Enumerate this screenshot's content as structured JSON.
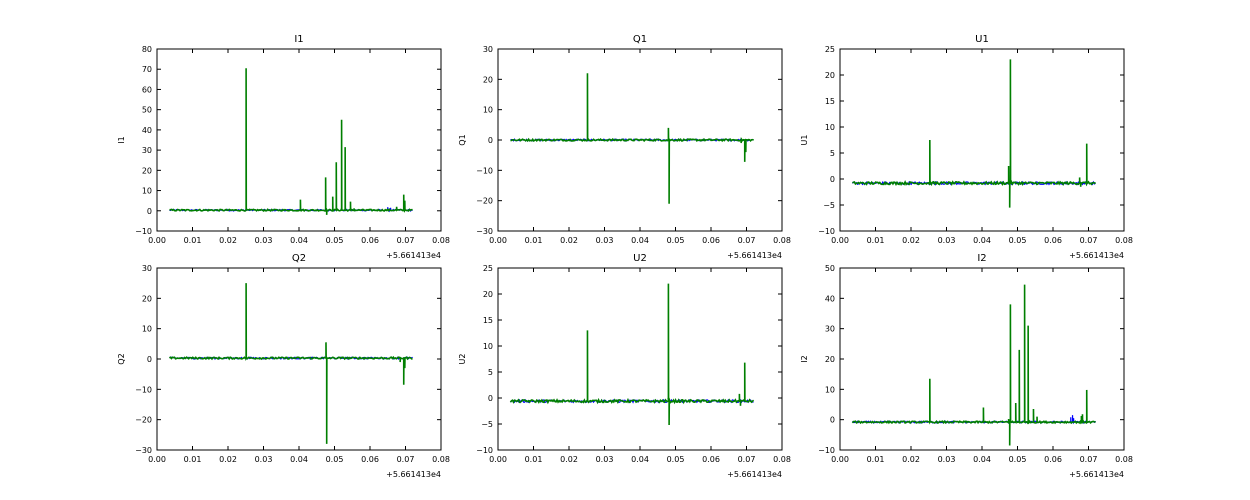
{
  "chart_data": [
    {
      "type": "line",
      "title": "I1",
      "ylabel": "I1",
      "xlabel": "",
      "x_offset_label": "+5.661413e4",
      "xlim": [
        0.0,
        0.08
      ],
      "ylim": [
        -10,
        80
      ],
      "xticks": [
        "0.00",
        "0.01",
        "0.02",
        "0.03",
        "0.04",
        "0.05",
        "0.06",
        "0.07",
        "0.08"
      ],
      "yticks": [
        -10,
        0,
        10,
        20,
        30,
        40,
        50,
        60,
        70,
        80
      ],
      "x_range": [
        0.0035,
        0.072
      ],
      "series": [
        {
          "name": "blue",
          "color": "#0000ff",
          "baseline": 0.3,
          "noise": 0.4,
          "spikes": [
            [
              0.065,
              1.8
            ],
            [
              0.0655,
              1.2
            ],
            [
              0.0658,
              1.5
            ]
          ]
        },
        {
          "name": "green",
          "color": "#007f00",
          "baseline": 0.3,
          "noise": 0.4,
          "spikes": [
            [
              0.0251,
              70.5
            ],
            [
              0.0404,
              5.5
            ],
            [
              0.0475,
              16.5
            ],
            [
              0.0478,
              -2.0
            ],
            [
              0.0495,
              7
            ],
            [
              0.0505,
              24
            ],
            [
              0.052,
              45
            ],
            [
              0.053,
              31.5
            ],
            [
              0.0545,
              4.5
            ],
            [
              0.0555,
              1.2
            ],
            [
              0.0675,
              2.0
            ],
            [
              0.0695,
              8
            ],
            [
              0.0698,
              5
            ]
          ]
        }
      ]
    },
    {
      "type": "line",
      "title": "Q1",
      "ylabel": "Q1",
      "xlabel": "",
      "x_offset_label": "+5.661413e4",
      "xlim": [
        0.0,
        0.08
      ],
      "ylim": [
        -30,
        30
      ],
      "xticks": [
        "0.00",
        "0.01",
        "0.02",
        "0.03",
        "0.04",
        "0.05",
        "0.06",
        "0.07",
        "0.08"
      ],
      "yticks": [
        -30,
        -20,
        -10,
        0,
        10,
        20,
        30
      ],
      "x_range": [
        0.0035,
        0.072
      ],
      "series": [
        {
          "name": "blue",
          "color": "#0000ff",
          "baseline": 0.0,
          "noise": 0.3,
          "spikes": []
        },
        {
          "name": "green",
          "color": "#007f00",
          "baseline": 0.0,
          "noise": 0.3,
          "spikes": [
            [
              0.0252,
              22
            ],
            [
              0.048,
              4
            ],
            [
              0.0482,
              -21
            ],
            [
              0.0685,
              -1.0
            ],
            [
              0.0695,
              -7.2
            ],
            [
              0.0698,
              -4
            ]
          ]
        }
      ]
    },
    {
      "type": "line",
      "title": "U1",
      "ylabel": "U1",
      "xlabel": "",
      "x_offset_label": "+5.661413e4",
      "xlim": [
        0.0,
        0.08
      ],
      "ylim": [
        -10,
        25
      ],
      "xticks": [
        "0.00",
        "0.01",
        "0.02",
        "0.03",
        "0.04",
        "0.05",
        "0.06",
        "0.07",
        "0.08"
      ],
      "yticks": [
        -10,
        -5,
        0,
        5,
        10,
        15,
        20,
        25
      ],
      "x_range": [
        0.0035,
        0.072
      ],
      "series": [
        {
          "name": "blue",
          "color": "#0000ff",
          "baseline": -0.8,
          "noise": 0.25,
          "spikes": []
        },
        {
          "name": "green",
          "color": "#007f00",
          "baseline": -0.8,
          "noise": 0.25,
          "spikes": [
            [
              0.0253,
              7.5
            ],
            [
              0.0475,
              2.5
            ],
            [
              0.0478,
              -5.5
            ],
            [
              0.048,
              23
            ],
            [
              0.0675,
              0.3
            ],
            [
              0.0678,
              -1.5
            ],
            [
              0.0695,
              6.8
            ]
          ]
        }
      ]
    },
    {
      "type": "line",
      "title": "Q2",
      "ylabel": "Q2",
      "xlabel": "",
      "x_offset_label": "+5.661413e4",
      "xlim": [
        0.0,
        0.08
      ],
      "ylim": [
        -30,
        30
      ],
      "xticks": [
        "0.00",
        "0.01",
        "0.02",
        "0.03",
        "0.04",
        "0.05",
        "0.06",
        "0.07",
        "0.08"
      ],
      "yticks": [
        -30,
        -20,
        -10,
        0,
        10,
        20,
        30
      ],
      "x_range": [
        0.0035,
        0.072
      ],
      "series": [
        {
          "name": "blue",
          "color": "#0000ff",
          "baseline": 0.3,
          "noise": 0.3,
          "spikes": []
        },
        {
          "name": "green",
          "color": "#007f00",
          "baseline": 0.3,
          "noise": 0.3,
          "spikes": [
            [
              0.0251,
              25
            ],
            [
              0.0476,
              5.5
            ],
            [
              0.0478,
              -28
            ],
            [
              0.0685,
              -1.0
            ],
            [
              0.0695,
              -8.5
            ],
            [
              0.0698,
              -3
            ]
          ]
        }
      ]
    },
    {
      "type": "line",
      "title": "U2",
      "ylabel": "U2",
      "xlabel": "",
      "x_offset_label": "+5.661413e4",
      "xlim": [
        0.0,
        0.08
      ],
      "ylim": [
        -10,
        25
      ],
      "xticks": [
        "0.00",
        "0.01",
        "0.02",
        "0.03",
        "0.04",
        "0.05",
        "0.06",
        "0.07",
        "0.08"
      ],
      "yticks": [
        -10,
        -5,
        0,
        5,
        10,
        15,
        20,
        25
      ],
      "x_range": [
        0.0035,
        0.072
      ],
      "series": [
        {
          "name": "blue",
          "color": "#0000ff",
          "baseline": -0.6,
          "noise": 0.25,
          "spikes": []
        },
        {
          "name": "green",
          "color": "#007f00",
          "baseline": -0.6,
          "noise": 0.25,
          "spikes": [
            [
              0.0252,
              13
            ],
            [
              0.048,
              22
            ],
            [
              0.0482,
              -5.2
            ],
            [
              0.068,
              0.8
            ],
            [
              0.0683,
              -1.5
            ],
            [
              0.0695,
              6.8
            ]
          ]
        }
      ]
    },
    {
      "type": "line",
      "title": "I2",
      "ylabel": "I2",
      "xlabel": "",
      "x_offset_label": "+5.661413e4",
      "xlim": [
        0.0,
        0.08
      ],
      "ylim": [
        -10,
        50
      ],
      "xticks": [
        "0.00",
        "0.01",
        "0.02",
        "0.03",
        "0.04",
        "0.05",
        "0.06",
        "0.07",
        "0.08"
      ],
      "yticks": [
        -10,
        0,
        10,
        20,
        30,
        40,
        50
      ],
      "x_range": [
        0.0035,
        0.072
      ],
      "series": [
        {
          "name": "blue",
          "color": "#0000ff",
          "baseline": -0.8,
          "noise": 0.3,
          "spikes": [
            [
              0.065,
              0.8
            ],
            [
              0.0655,
              1.5
            ],
            [
              0.0658,
              0.5
            ]
          ]
        },
        {
          "name": "green",
          "color": "#007f00",
          "baseline": -0.8,
          "noise": 0.3,
          "spikes": [
            [
              0.0253,
              13.5
            ],
            [
              0.0404,
              4
            ],
            [
              0.0475,
              0.2
            ],
            [
              0.0478,
              -8.5
            ],
            [
              0.048,
              38
            ],
            [
              0.0495,
              5.5
            ],
            [
              0.0505,
              23
            ],
            [
              0.052,
              44.5
            ],
            [
              0.053,
              31
            ],
            [
              0.0545,
              3.5
            ],
            [
              0.0555,
              1.0
            ],
            [
              0.068,
              1.2
            ],
            [
              0.0683,
              1.8
            ],
            [
              0.0695,
              9.8
            ]
          ]
        }
      ]
    }
  ]
}
